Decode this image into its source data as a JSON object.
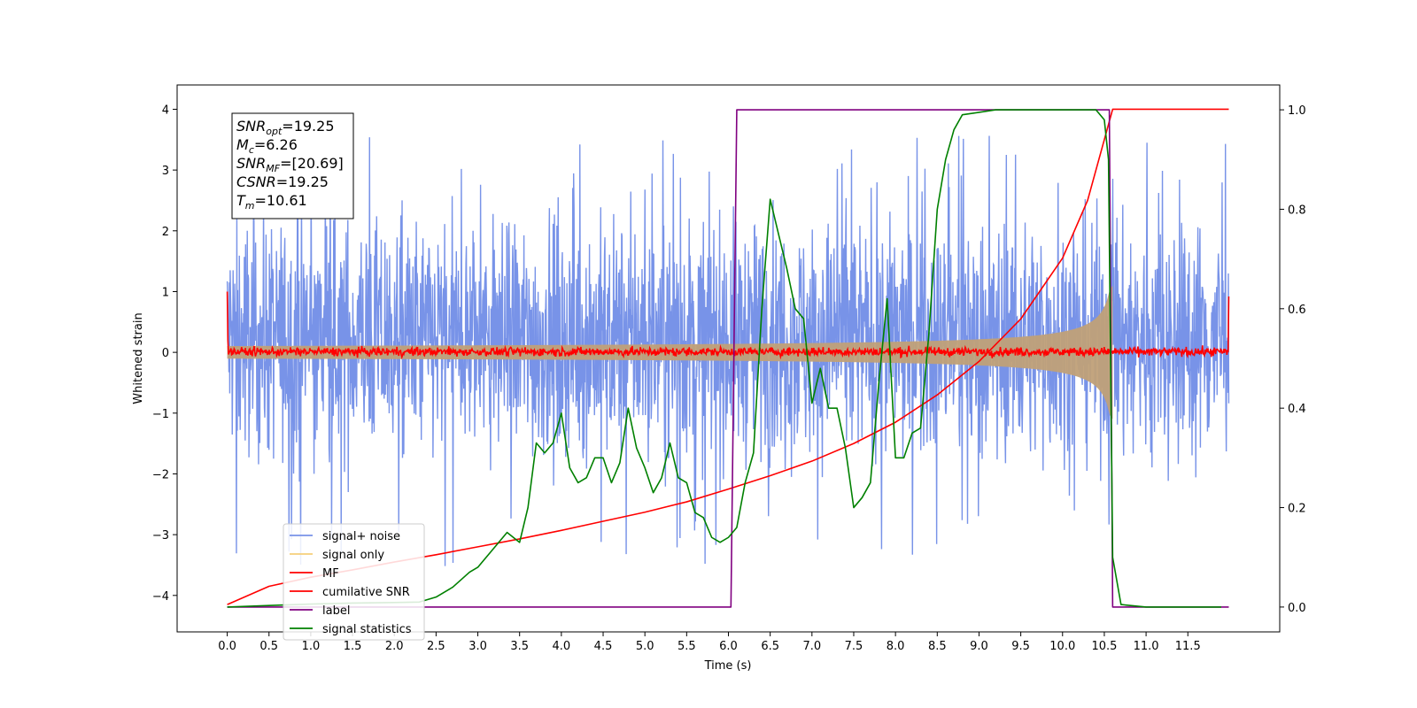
{
  "chart_data": {
    "type": "line",
    "title": "",
    "xlabel": "Time (s)",
    "ylabel": "Whitened strain",
    "y2label": "",
    "xlim": [
      -0.6,
      12.6
    ],
    "ylim": [
      -4.6,
      4.4
    ],
    "y2lim": [
      -0.05,
      1.05
    ],
    "x_ticks": [
      "0.0",
      "0.5",
      "1.0",
      "1.5",
      "2.0",
      "2.5",
      "3.0",
      "3.5",
      "4.0",
      "4.5",
      "5.0",
      "5.5",
      "6.0",
      "6.5",
      "7.0",
      "7.5",
      "8.0",
      "8.5",
      "9.0",
      "9.5",
      "10.0",
      "10.5",
      "11.0",
      "11.5"
    ],
    "y_ticks": [
      "4",
      "3",
      "2",
      "1",
      "0",
      "−1",
      "−2",
      "−3",
      "−4"
    ],
    "y2_ticks": [
      "1.0",
      "0.8",
      "0.6",
      "0.4",
      "0.2",
      "0.0"
    ],
    "grid": false,
    "legend_position": "lower-left",
    "annotation": {
      "lines": [
        {
          "sym": "SNR",
          "sub": "opt",
          "value": "=19.25"
        },
        {
          "sym": "M",
          "sub": "c",
          "value": "=6.26"
        },
        {
          "sym": "SNR",
          "sub": "MF",
          "value": "=[20.69]"
        },
        {
          "sym": "CSNR",
          "sub": "",
          "value": "=19.25"
        },
        {
          "sym": "T",
          "sub": "m",
          "value": "=10.61"
        }
      ]
    },
    "series": [
      {
        "name": "signal+ noise",
        "color": "#7893e8",
        "axis": "left",
        "kind": "noise",
        "x_range": [
          0,
          11.99
        ],
        "typical_range": [
          -2.2,
          2.6
        ],
        "extremes": [
          -4.15,
          4.0
        ]
      },
      {
        "name": "signal only",
        "color": "#c0a078",
        "axis": "left",
        "kind": "chirp",
        "x_range": [
          0,
          10.6
        ],
        "amplitude_start": 0.05,
        "amplitude_end": 1.1
      },
      {
        "name": "MF",
        "color": "#ff0000",
        "axis": "left",
        "kind": "noise",
        "x_range": [
          0,
          11.99
        ],
        "typical_range": [
          -0.1,
          0.12
        ],
        "edges": [
          1.0,
          0.92
        ]
      },
      {
        "name": "cumilative SNR",
        "color": "#ff0000",
        "axis": "left",
        "x": [
          0,
          0.5,
          1.0,
          1.5,
          2.0,
          2.5,
          3.0,
          3.5,
          4.0,
          4.5,
          5.0,
          5.5,
          6.0,
          6.5,
          7.0,
          7.5,
          8.0,
          8.5,
          9.0,
          9.5,
          10.0,
          10.3,
          10.5,
          10.6,
          11.0,
          11.99
        ],
        "y": [
          -4.15,
          -3.85,
          -3.7,
          -3.58,
          -3.45,
          -3.33,
          -3.2,
          -3.07,
          -2.93,
          -2.78,
          -2.63,
          -2.46,
          -2.25,
          -2.03,
          -1.79,
          -1.5,
          -1.15,
          -0.7,
          -0.15,
          0.55,
          1.55,
          2.5,
          3.5,
          4.0,
          4.0,
          4.0
        ]
      },
      {
        "name": "label",
        "color": "#800080",
        "axis": "right",
        "x": [
          0,
          6.03,
          6.1,
          10.56,
          10.6,
          11.99
        ],
        "y": [
          0,
          0,
          1,
          1,
          0,
          0
        ]
      },
      {
        "name": "signal statistics",
        "color": "#008000",
        "axis": "right",
        "x": [
          0,
          0.5,
          1.0,
          1.5,
          2.0,
          2.3,
          2.5,
          2.7,
          2.9,
          3.0,
          3.2,
          3.35,
          3.5,
          3.6,
          3.7,
          3.8,
          3.9,
          4.0,
          4.1,
          4.2,
          4.3,
          4.4,
          4.5,
          4.6,
          4.7,
          4.8,
          4.9,
          5.0,
          5.1,
          5.2,
          5.3,
          5.4,
          5.5,
          5.6,
          5.7,
          5.8,
          5.9,
          6.0,
          6.1,
          6.2,
          6.3,
          6.4,
          6.5,
          6.6,
          6.7,
          6.8,
          6.9,
          7.0,
          7.1,
          7.2,
          7.3,
          7.4,
          7.5,
          7.6,
          7.7,
          7.8,
          7.9,
          8.0,
          8.1,
          8.2,
          8.3,
          8.4,
          8.5,
          8.6,
          8.7,
          8.8,
          9.0,
          9.2,
          9.5,
          10.0,
          10.4,
          10.5,
          10.55,
          10.6,
          10.7,
          11.0,
          11.5,
          11.9
        ],
        "y": [
          0.0,
          0.003,
          0.006,
          0.008,
          0.009,
          0.01,
          0.02,
          0.04,
          0.07,
          0.08,
          0.12,
          0.15,
          0.13,
          0.2,
          0.33,
          0.31,
          0.33,
          0.39,
          0.28,
          0.25,
          0.26,
          0.3,
          0.3,
          0.25,
          0.29,
          0.4,
          0.32,
          0.28,
          0.23,
          0.26,
          0.33,
          0.26,
          0.25,
          0.19,
          0.18,
          0.14,
          0.13,
          0.14,
          0.16,
          0.25,
          0.31,
          0.6,
          0.82,
          0.75,
          0.68,
          0.6,
          0.58,
          0.41,
          0.48,
          0.4,
          0.4,
          0.32,
          0.2,
          0.22,
          0.25,
          0.45,
          0.62,
          0.3,
          0.3,
          0.35,
          0.36,
          0.55,
          0.8,
          0.9,
          0.96,
          0.99,
          0.995,
          1.0,
          1.0,
          1.0,
          1.0,
          0.98,
          0.9,
          0.1,
          0.005,
          0.0,
          0.0,
          0.0
        ]
      }
    ]
  }
}
